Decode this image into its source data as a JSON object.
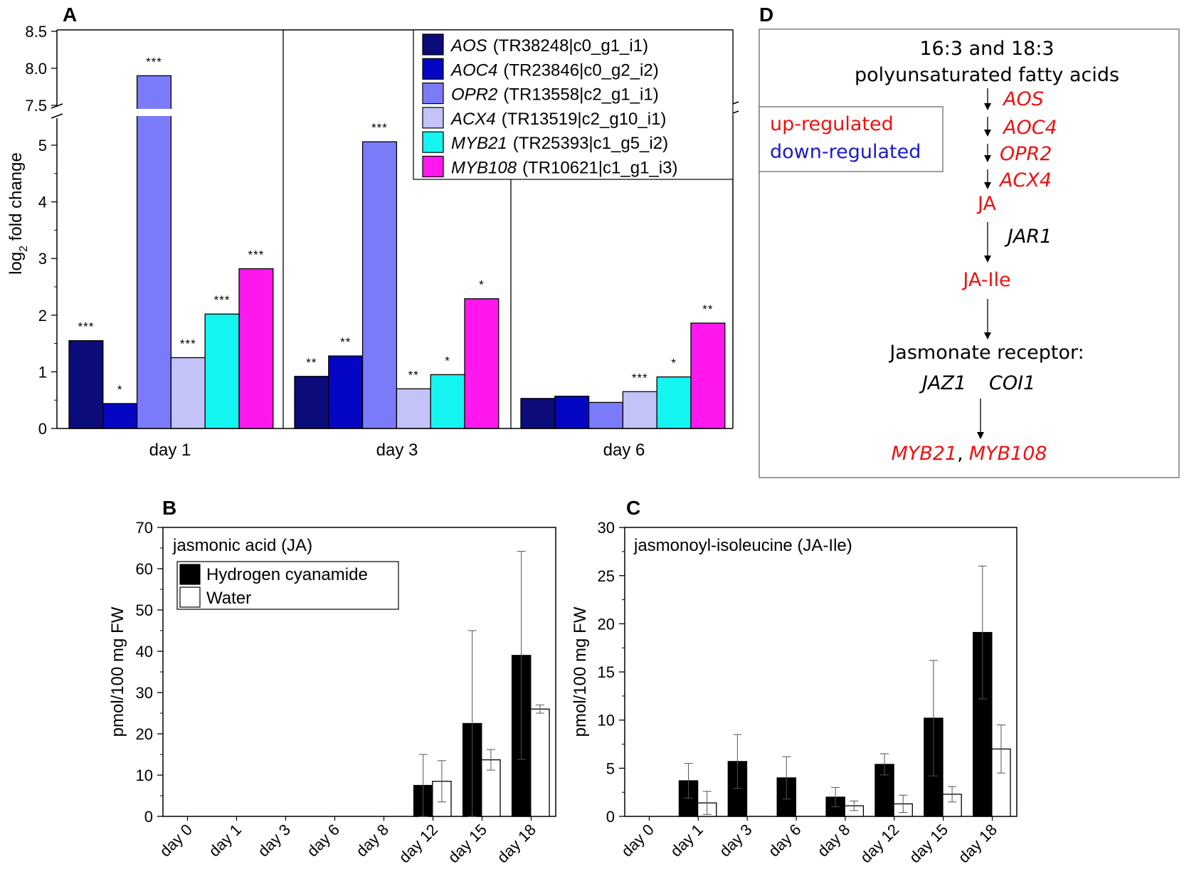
{
  "panels": {
    "a": "A",
    "b": "B",
    "c": "C",
    "d": "D"
  },
  "colors": {
    "AOS": "#0b0b7a",
    "AOC4": "#0505c4",
    "OPR2": "#7b7bfa",
    "ACX4": "#c3c3f8",
    "MYB21": "#14f4f0",
    "MYB108": "#ff17ee",
    "up": "#ee1111",
    "down": "#1a1acc"
  },
  "chart_data": [
    {
      "id": "A",
      "type": "bar",
      "title": "",
      "xlabel": "",
      "ylabel": "log2 fold change",
      "ylabel_parts": {
        "base": "log",
        "sub": "2",
        "rest": " fold change"
      },
      "categories": [
        "day 1",
        "day 3",
        "day 6"
      ],
      "ylim": [
        0,
        8.5
      ],
      "axis_break": [
        5.3,
        7.4
      ],
      "yticks_lower": [
        "0",
        "1",
        "2",
        "3",
        "4",
        "5"
      ],
      "yticks_upper": [
        "7.5",
        "8.0",
        "8.5"
      ],
      "series": [
        {
          "gene": "AOS",
          "id": "(TR38248|c0_g1_i1)",
          "values": [
            1.55,
            0.92,
            0.53
          ],
          "sig": [
            "***",
            "**",
            ""
          ]
        },
        {
          "gene": "AOC4",
          "id": "(TR23846|c0_g2_i2)",
          "values": [
            0.44,
            1.28,
            0.57
          ],
          "sig": [
            "*",
            "**",
            ""
          ]
        },
        {
          "gene": "OPR2",
          "id": "(TR13558|c2_g1_i1)",
          "values": [
            7.9,
            5.06,
            0.46
          ],
          "sig": [
            "***",
            "***",
            ""
          ]
        },
        {
          "gene": "ACX4",
          "id": "(TR13519|c2_g10_i1)",
          "values": [
            1.25,
            0.7,
            0.65
          ],
          "sig": [
            "***",
            "**",
            "***"
          ]
        },
        {
          "gene": "MYB21",
          "id": "(TR25393|c1_g5_i2)",
          "values": [
            2.02,
            0.95,
            0.91
          ],
          "sig": [
            "***",
            "*",
            "*"
          ]
        },
        {
          "gene": "MYB108",
          "id": "(TR10621|c1_g1_i3)",
          "values": [
            2.82,
            2.29,
            1.86
          ],
          "sig": [
            "***",
            "*",
            "**"
          ]
        }
      ]
    },
    {
      "id": "B",
      "type": "bar",
      "title": "jasmonic acid (JA)",
      "xlabel": "",
      "ylabel": "pmol/100 mg FW",
      "categories": [
        "day 0",
        "day 1",
        "day 3",
        "day 6",
        "day 8",
        "day 12",
        "day 15",
        "day 18"
      ],
      "ylim": [
        0,
        70
      ],
      "yticks": [
        "0",
        "10",
        "20",
        "30",
        "40",
        "50",
        "60",
        "70"
      ],
      "legend": [
        "Hydrogen cyanamide",
        "Water"
      ],
      "series": [
        {
          "name": "Hydrogen cyanamide",
          "values": [
            null,
            null,
            null,
            null,
            null,
            7.5,
            22.5,
            39
          ],
          "err": [
            null,
            null,
            null,
            null,
            null,
            7.5,
            22.5,
            25.2
          ]
        },
        {
          "name": "Water",
          "values": [
            null,
            null,
            null,
            null,
            null,
            8.5,
            13.7,
            26
          ],
          "err": [
            null,
            null,
            null,
            null,
            null,
            5,
            2.5,
            1
          ]
        }
      ]
    },
    {
      "id": "C",
      "type": "bar",
      "title": "jasmonoyl-isoleucine (JA-Ile)",
      "xlabel": "",
      "ylabel": "pmol/100 mg FW",
      "categories": [
        "day 0",
        "day 1",
        "day 3",
        "day 6",
        "day 8",
        "day 12",
        "day 15",
        "day 18"
      ],
      "ylim": [
        0,
        30
      ],
      "yticks": [
        "0",
        "5",
        "10",
        "15",
        "20",
        "25",
        "30"
      ],
      "series": [
        {
          "name": "Hydrogen cyanamide",
          "values": [
            null,
            3.7,
            5.7,
            4.0,
            2.0,
            5.4,
            10.2,
            19.1
          ],
          "err": [
            null,
            1.8,
            2.8,
            2.2,
            1.0,
            1.1,
            6.0,
            6.9
          ]
        },
        {
          "name": "Water",
          "values": [
            null,
            1.4,
            null,
            null,
            1.1,
            1.3,
            2.3,
            7.0
          ],
          "err": [
            null,
            1.2,
            null,
            null,
            0.5,
            0.9,
            0.8,
            2.5
          ]
        }
      ]
    }
  ],
  "pathway": {
    "source_line1": "16:3 and 18:3",
    "source_line2": "polyunsaturated fatty acids",
    "legend_up": "up-regulated",
    "legend_down": "down-regulated",
    "genes": [
      "AOS",
      "AOC4",
      "OPR2",
      "ACX4"
    ],
    "ja": "JA",
    "jar1": "JAR1",
    "ja_ile": "JA-Ile",
    "receptor": "Jasmonate receptor:",
    "jaz1": "JAZ1",
    "coi1": "COI1",
    "targets_a": "MYB21",
    "targets_sep": ",",
    "targets_b": "MYB108"
  }
}
